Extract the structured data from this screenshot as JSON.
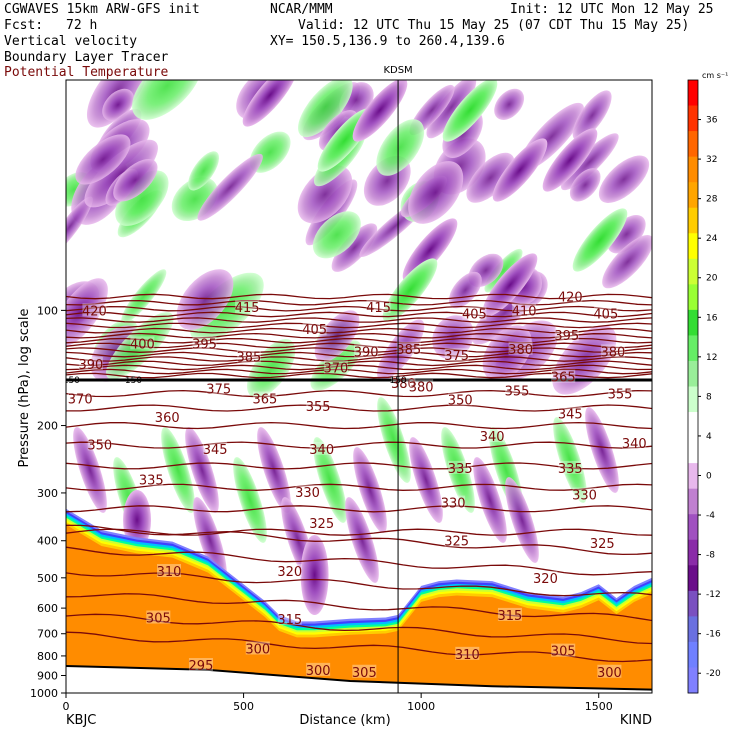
{
  "header": {
    "model": "CGWAVES 15km ARW-GFS init",
    "org": "NCAR/MMM",
    "init": "Init: 12 UTC Mon 12 May 25",
    "fcst_label": "Fcst:",
    "fcst_value": "72 h",
    "valid": "Valid: 12 UTC Thu 15 May 25 (07 CDT Thu 15 May 25)",
    "fields": [
      "Vertical velocity",
      "Boundary Layer Tracer",
      "Potential Temperature"
    ],
    "xy": "XY= 150.5,136.9 to 260.4,139.6"
  },
  "colors": {
    "theta_contour": "#7a0a0a",
    "tropopause": "#000000",
    "terrain_fill": "#ff8c00",
    "updraft": "#33dd33",
    "downdraft": "#8a2ca8"
  },
  "chart_data": {
    "type": "cross-section",
    "xlabel": "Distance (km)",
    "ylabel": "Pressure (hPa), log scale",
    "xlim": [
      0,
      1650
    ],
    "ylim": [
      1000,
      25
    ],
    "y_scale": "log",
    "x_ticks": [
      "0",
      "500",
      "1000",
      "1500"
    ],
    "x_tick_values": [
      0,
      500,
      1000,
      1500
    ],
    "y_ticks": [
      "100",
      "200",
      "300",
      "400",
      "500",
      "600",
      "700",
      "800",
      "900",
      "1000"
    ],
    "y_tick_values": [
      100,
      200,
      300,
      400,
      500,
      600,
      700,
      800,
      900,
      1000
    ],
    "endpoint_left": "KBJC",
    "endpoint_right": "KIND",
    "marker_label": "KDSM",
    "marker_x": 935,
    "colorbar": {
      "units": "cm s⁻¹",
      "labels": [
        "36",
        "32",
        "28",
        "24",
        "20",
        "16",
        "12",
        "8",
        "4",
        "0",
        "-4",
        "-8",
        "-12",
        "-16",
        "-20"
      ],
      "values": [
        36,
        32,
        28,
        24,
        20,
        16,
        12,
        8,
        4,
        0,
        -4,
        -8,
        -12,
        -16,
        -20
      ],
      "colors": [
        "#ff0000",
        "#ff3300",
        "#ff6600",
        "#ff8c00",
        "#ffa500",
        "#ffcc00",
        "#ffff00",
        "#ccff33",
        "#99ff33",
        "#33dd33",
        "#66ee66",
        "#99ee99",
        "#ccffcc",
        "#ffffff",
        "#ffffff",
        "#e8b8ec",
        "#c080d0",
        "#a050c0",
        "#8a2ca8",
        "#6a0d8a",
        "#7a50c0",
        "#6a70e0",
        "#7080ff",
        "#8080ff"
      ]
    },
    "terrain": {
      "x": [
        0,
        100,
        200,
        300,
        400,
        500,
        560,
        600,
        650,
        700,
        800,
        900,
        935,
        960,
        1000,
        1050,
        1100,
        1200,
        1300,
        1400,
        1450,
        1500,
        1550,
        1600,
        1650
      ],
      "p": [
        330,
        375,
        392,
        402,
        440,
        520,
        575,
        625,
        650,
        650,
        640,
        635,
        625,
        585,
        525,
        510,
        505,
        510,
        545,
        560,
        545,
        520,
        565,
        525,
        500
      ]
    },
    "theta_labels": [
      {
        "text": "420",
        "x": 80,
        "p": 100
      },
      {
        "text": "415",
        "x": 510,
        "p": 98
      },
      {
        "text": "415",
        "x": 880,
        "p": 98
      },
      {
        "text": "410",
        "x": 1290,
        "p": 100
      },
      {
        "text": "420",
        "x": 1420,
        "p": 92
      },
      {
        "text": "405",
        "x": 1150,
        "p": 102
      },
      {
        "text": "405",
        "x": 1520,
        "p": 102
      },
      {
        "text": "405",
        "x": 700,
        "p": 112
      },
      {
        "text": "400",
        "x": 215,
        "p": 122
      },
      {
        "text": "395",
        "x": 390,
        "p": 122
      },
      {
        "text": "395",
        "x": 1410,
        "p": 116
      },
      {
        "text": "390",
        "x": 70,
        "p": 138
      },
      {
        "text": "390",
        "x": 845,
        "p": 128
      },
      {
        "text": "385",
        "x": 515,
        "p": 132
      },
      {
        "text": "385",
        "x": 965,
        "p": 126
      },
      {
        "text": "380",
        "x": 1280,
        "p": 126
      },
      {
        "text": "380",
        "x": 1540,
        "p": 128
      },
      {
        "text": "375",
        "x": 1100,
        "p": 131
      },
      {
        "text": "370",
        "x": 760,
        "p": 141
      },
      {
        "text": "365",
        "x": 1400,
        "p": 149
      },
      {
        "text": "380",
        "x": 950,
        "p": 155
      },
      {
        "text": "380",
        "x": 1000,
        "p": 158
      },
      {
        "text": "375",
        "x": 430,
        "p": 160
      },
      {
        "text": "370",
        "x": 40,
        "p": 170
      },
      {
        "text": "365",
        "x": 560,
        "p": 170
      },
      {
        "text": "360",
        "x": 285,
        "p": 190
      },
      {
        "text": "355",
        "x": 710,
        "p": 178
      },
      {
        "text": "355",
        "x": 1270,
        "p": 162
      },
      {
        "text": "355",
        "x": 1560,
        "p": 165
      },
      {
        "text": "350",
        "x": 1110,
        "p": 171
      },
      {
        "text": "345",
        "x": 1420,
        "p": 186
      },
      {
        "text": "350",
        "x": 95,
        "p": 224
      },
      {
        "text": "345",
        "x": 420,
        "p": 230
      },
      {
        "text": "340",
        "x": 720,
        "p": 230
      },
      {
        "text": "340",
        "x": 1200,
        "p": 213
      },
      {
        "text": "340",
        "x": 1600,
        "p": 222
      },
      {
        "text": "335",
        "x": 240,
        "p": 277
      },
      {
        "text": "335",
        "x": 1110,
        "p": 258
      },
      {
        "text": "335",
        "x": 1420,
        "p": 258
      },
      {
        "text": "330",
        "x": 680,
        "p": 298
      },
      {
        "text": "330",
        "x": 1090,
        "p": 318
      },
      {
        "text": "330",
        "x": 1460,
        "p": 303
      },
      {
        "text": "325",
        "x": 720,
        "p": 360
      },
      {
        "text": "325",
        "x": 1100,
        "p": 400
      },
      {
        "text": "325",
        "x": 1510,
        "p": 405
      },
      {
        "text": "320",
        "x": 630,
        "p": 480
      },
      {
        "text": "320",
        "x": 1350,
        "p": 500
      },
      {
        "text": "310",
        "x": 290,
        "p": 480
      },
      {
        "text": "305",
        "x": 260,
        "p": 635
      },
      {
        "text": "315",
        "x": 630,
        "p": 640
      },
      {
        "text": "315",
        "x": 1250,
        "p": 625
      },
      {
        "text": "300",
        "x": 540,
        "p": 765
      },
      {
        "text": "300",
        "x": 710,
        "p": 870
      },
      {
        "text": "305",
        "x": 840,
        "p": 880
      },
      {
        "text": "310",
        "x": 1130,
        "p": 790
      },
      {
        "text": "305",
        "x": 1400,
        "p": 775
      },
      {
        "text": "300",
        "x": 1530,
        "p": 880
      },
      {
        "text": "295",
        "x": 380,
        "p": 845
      }
    ],
    "trop_labels": [
      {
        "text": "150",
        "x": 15,
        "p": 152
      },
      {
        "text": "150",
        "x": 190,
        "p": 152
      },
      {
        "text": "150",
        "x": 935,
        "p": 152
      }
    ]
  }
}
